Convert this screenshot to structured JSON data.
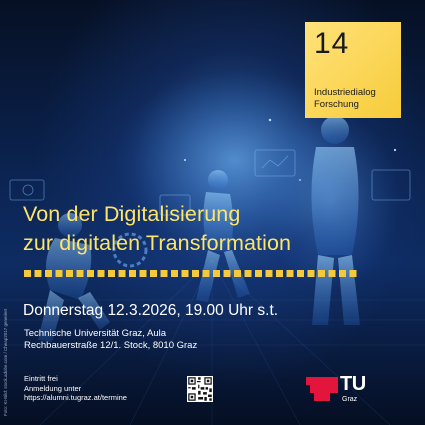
{
  "badge": {
    "number": "14",
    "label_line1": "Industriedialog",
    "label_line2": "Forschung"
  },
  "headline": {
    "line1": "Von der Digitalisierung",
    "line2": "zur digitalen Transformation"
  },
  "event": {
    "date_time": "Donnerstag 12.3.2026, 19.00 Uhr s.t.",
    "venue_line1": "Technische Universität Graz, Aula",
    "venue_line2": "Rechbauerstraße 12/1. Stock, 8010 Graz"
  },
  "registration": {
    "line1": "Eintritt frei",
    "line2": "Anmeldung unter",
    "line3": "https://alumni.tugraz.at/termine"
  },
  "credit": "Foto: KI-Bild: stock.adobe.com / Cheap2017 generiert",
  "logo": {
    "wordmark": "TU",
    "sub": "Graz"
  },
  "colors": {
    "accent_yellow": "#ffe566",
    "badge_yellow": "#f7cc3a",
    "tu_red": "#e4153d",
    "background_navy": "#0b2350"
  },
  "icons": [
    "qr-code-icon",
    "tu-graz-logo-icon"
  ]
}
